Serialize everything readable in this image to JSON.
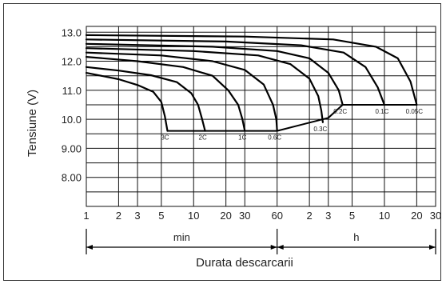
{
  "chart_data": {
    "type": "line",
    "title": "",
    "ylabel": "Tensiune (V)",
    "xlabel": "Durata descarcarii",
    "y_ticks": [
      "13.0",
      "12.0",
      "11.0",
      "10.0",
      "9.00",
      "8.00"
    ],
    "y_tick_values": [
      13,
      12,
      11,
      10,
      9,
      8
    ],
    "ylim": [
      7,
      13.2
    ],
    "x_scale": "log",
    "x_tick_labels": [
      "1",
      "2",
      "3",
      "5",
      "10",
      "20",
      "30",
      "60",
      "2",
      "3",
      "5",
      "10",
      "20",
      "30"
    ],
    "x_tick_values_min": [
      1,
      2,
      3,
      5,
      10,
      20,
      30,
      60,
      120,
      180,
      300,
      600,
      1200,
      1800
    ],
    "xlim_min": [
      1,
      1800
    ],
    "unit_sections": [
      {
        "label": "min",
        "from_min": 1,
        "to_min": 60
      },
      {
        "label": "h",
        "from_min": 60,
        "to_min": 1800
      }
    ],
    "grid": true,
    "series": [
      {
        "name": "3C",
        "points": [
          [
            1,
            11.6
          ],
          [
            2,
            11.38
          ],
          [
            3,
            11.18
          ],
          [
            4.2,
            10.95
          ],
          [
            5,
            10.6
          ],
          [
            5.4,
            10.1
          ],
          [
            5.7,
            9.6
          ]
        ]
      },
      {
        "name": "2C",
        "points": [
          [
            1,
            11.8
          ],
          [
            2,
            11.68
          ],
          [
            4,
            11.52
          ],
          [
            7,
            11.28
          ],
          [
            9.5,
            10.9
          ],
          [
            11,
            10.5
          ],
          [
            12,
            10.0
          ],
          [
            12.8,
            9.6
          ]
        ]
      },
      {
        "name": "1C",
        "points": [
          [
            1,
            12.15
          ],
          [
            3,
            12.0
          ],
          [
            8,
            11.8
          ],
          [
            15,
            11.5
          ],
          [
            21,
            11.0
          ],
          [
            26,
            10.5
          ],
          [
            28.5,
            10.0
          ],
          [
            30,
            9.6
          ]
        ]
      },
      {
        "name": "0.6C",
        "points": [
          [
            1,
            12.3
          ],
          [
            5,
            12.2
          ],
          [
            15,
            12.0
          ],
          [
            30,
            11.7
          ],
          [
            45,
            11.2
          ],
          [
            55,
            10.5
          ],
          [
            59,
            10.0
          ],
          [
            60,
            9.6
          ]
        ]
      },
      {
        "name": "0.3C",
        "points": [
          [
            1,
            12.45
          ],
          [
            10,
            12.35
          ],
          [
            40,
            12.2
          ],
          [
            80,
            11.9
          ],
          [
            120,
            11.4
          ],
          [
            145,
            10.8
          ],
          [
            155,
            10.3
          ],
          [
            160,
            9.9
          ]
        ]
      },
      {
        "name": "0.2C",
        "points": [
          [
            1,
            12.6
          ],
          [
            15,
            12.5
          ],
          [
            60,
            12.35
          ],
          [
            120,
            12.1
          ],
          [
            180,
            11.6
          ],
          [
            225,
            11.0
          ],
          [
            245,
            10.5
          ]
        ]
      },
      {
        "name": "0.1C",
        "points": [
          [
            1,
            12.75
          ],
          [
            20,
            12.68
          ],
          [
            100,
            12.55
          ],
          [
            250,
            12.3
          ],
          [
            400,
            11.8
          ],
          [
            520,
            11.1
          ],
          [
            600,
            10.5
          ]
        ]
      },
      {
        "name": "0.05C",
        "points": [
          [
            1,
            12.9
          ],
          [
            30,
            12.85
          ],
          [
            200,
            12.75
          ],
          [
            500,
            12.5
          ],
          [
            800,
            12.1
          ],
          [
            1050,
            11.3
          ],
          [
            1200,
            10.5
          ]
        ]
      }
    ],
    "cutoff_lines": [
      {
        "points": [
          [
            5.7,
            9.6
          ],
          [
            60,
            9.6
          ]
        ]
      },
      {
        "points": [
          [
            60,
            9.6
          ],
          [
            180,
            10.05
          ],
          [
            245,
            10.5
          ]
        ]
      },
      {
        "points": [
          [
            245,
            10.5
          ],
          [
            1200,
            10.5
          ]
        ]
      }
    ]
  }
}
